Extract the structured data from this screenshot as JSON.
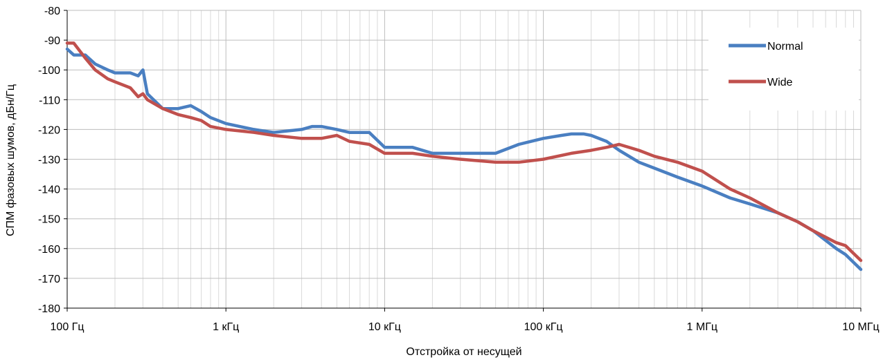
{
  "chart_data": {
    "type": "line",
    "xlabel": "Отстройка от несущей",
    "ylabel": "СПМ фазовых шумов, дБн/Гц",
    "x_scale": "log",
    "xlim": [
      100,
      10000000
    ],
    "ylim": [
      -180,
      -80
    ],
    "x_ticks": [
      100,
      1000,
      10000,
      100000,
      1000000,
      10000000
    ],
    "x_tick_labels": [
      "100 Гц",
      "1 кГц",
      "10 кГц",
      "100 кГц",
      "1 МГц",
      "10 МГц"
    ],
    "y_ticks": [
      -80,
      -90,
      -100,
      -110,
      -120,
      -130,
      -140,
      -150,
      -160,
      -170,
      -180
    ],
    "y_tick_labels": [
      "-80",
      "-90",
      "-100",
      "-110",
      "-120",
      "-130",
      "-140",
      "-150",
      "-160",
      "-170",
      "-180"
    ],
    "grid": true,
    "legend_position": "top-right",
    "series": [
      {
        "name": "Normal",
        "color": "#4a7fc1",
        "x": [
          100,
          110,
          130,
          150,
          180,
          200,
          250,
          280,
          300,
          320,
          400,
          500,
          600,
          700,
          800,
          1000,
          1500,
          2000,
          3000,
          3500,
          4000,
          5000,
          6000,
          8000,
          10000,
          15000,
          20000,
          30000,
          50000,
          70000,
          100000,
          130000,
          150000,
          180000,
          200000,
          250000,
          300000,
          400000,
          500000,
          700000,
          1000000,
          1500000,
          2000000,
          3000000,
          4000000,
          5000000,
          7000000,
          8000000,
          10000000
        ],
        "y": [
          -93,
          -95,
          -95,
          -98,
          -100,
          -101,
          -101,
          -102,
          -100,
          -108,
          -113,
          -113,
          -112,
          -114,
          -116,
          -118,
          -120,
          -121,
          -120,
          -119,
          -119,
          -120,
          -121,
          -121,
          -126,
          -126,
          -128,
          -128,
          -128,
          -125,
          -123,
          -122,
          -121.5,
          -121.5,
          -122,
          -124,
          -127,
          -131,
          -133,
          -136,
          -139,
          -143,
          -145,
          -148,
          -151,
          -154,
          -160,
          -162,
          -167
        ]
      },
      {
        "name": "Wide",
        "color": "#c0504d",
        "x": [
          100,
          110,
          130,
          150,
          180,
          200,
          250,
          280,
          300,
          320,
          400,
          500,
          600,
          700,
          800,
          1000,
          1500,
          2000,
          3000,
          4000,
          5000,
          6000,
          8000,
          10000,
          15000,
          20000,
          30000,
          50000,
          70000,
          100000,
          150000,
          200000,
          250000,
          300000,
          400000,
          500000,
          700000,
          1000000,
          1500000,
          2000000,
          3000000,
          4000000,
          5000000,
          7000000,
          8000000,
          10000000
        ],
        "y": [
          -91,
          -91,
          -96,
          -100,
          -103,
          -104,
          -106,
          -109,
          -108,
          -110,
          -113,
          -115,
          -116,
          -117,
          -119,
          -120,
          -121,
          -122,
          -123,
          -123,
          -122,
          -124,
          -125,
          -128,
          -128,
          -129,
          -130,
          -131,
          -131,
          -130,
          -128,
          -127,
          -126,
          -125,
          -127,
          -129,
          -131,
          -134,
          -140,
          -143,
          -148,
          -151,
          -154,
          -158,
          -159,
          -164
        ]
      }
    ]
  }
}
